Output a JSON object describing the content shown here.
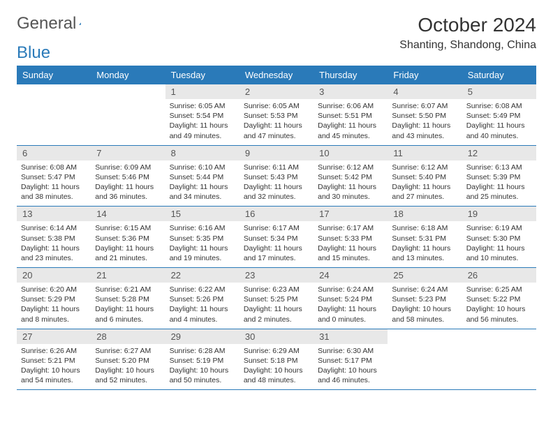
{
  "logo": {
    "text1": "General",
    "text2": "Blue"
  },
  "title": "October 2024",
  "location": "Shanting, Shandong, China",
  "colors": {
    "header_bg": "#2a7ab9",
    "header_text": "#ffffff",
    "daynum_bg": "#e8e8e8",
    "body_text": "#333333",
    "row_border": "#2a7ab9",
    "page_bg": "#ffffff"
  },
  "fonts": {
    "title_pt": 28,
    "location_pt": 16,
    "dow_pt": 13,
    "daynum_pt": 13,
    "body_pt": 10.5
  },
  "days_of_week": [
    "Sunday",
    "Monday",
    "Tuesday",
    "Wednesday",
    "Thursday",
    "Friday",
    "Saturday"
  ],
  "weeks": [
    [
      null,
      null,
      {
        "n": "1",
        "sr": "Sunrise: 6:05 AM",
        "ss": "Sunset: 5:54 PM",
        "dl": "Daylight: 11 hours and 49 minutes."
      },
      {
        "n": "2",
        "sr": "Sunrise: 6:05 AM",
        "ss": "Sunset: 5:53 PM",
        "dl": "Daylight: 11 hours and 47 minutes."
      },
      {
        "n": "3",
        "sr": "Sunrise: 6:06 AM",
        "ss": "Sunset: 5:51 PM",
        "dl": "Daylight: 11 hours and 45 minutes."
      },
      {
        "n": "4",
        "sr": "Sunrise: 6:07 AM",
        "ss": "Sunset: 5:50 PM",
        "dl": "Daylight: 11 hours and 43 minutes."
      },
      {
        "n": "5",
        "sr": "Sunrise: 6:08 AM",
        "ss": "Sunset: 5:49 PM",
        "dl": "Daylight: 11 hours and 40 minutes."
      }
    ],
    [
      {
        "n": "6",
        "sr": "Sunrise: 6:08 AM",
        "ss": "Sunset: 5:47 PM",
        "dl": "Daylight: 11 hours and 38 minutes."
      },
      {
        "n": "7",
        "sr": "Sunrise: 6:09 AM",
        "ss": "Sunset: 5:46 PM",
        "dl": "Daylight: 11 hours and 36 minutes."
      },
      {
        "n": "8",
        "sr": "Sunrise: 6:10 AM",
        "ss": "Sunset: 5:44 PM",
        "dl": "Daylight: 11 hours and 34 minutes."
      },
      {
        "n": "9",
        "sr": "Sunrise: 6:11 AM",
        "ss": "Sunset: 5:43 PM",
        "dl": "Daylight: 11 hours and 32 minutes."
      },
      {
        "n": "10",
        "sr": "Sunrise: 6:12 AM",
        "ss": "Sunset: 5:42 PM",
        "dl": "Daylight: 11 hours and 30 minutes."
      },
      {
        "n": "11",
        "sr": "Sunrise: 6:12 AM",
        "ss": "Sunset: 5:40 PM",
        "dl": "Daylight: 11 hours and 27 minutes."
      },
      {
        "n": "12",
        "sr": "Sunrise: 6:13 AM",
        "ss": "Sunset: 5:39 PM",
        "dl": "Daylight: 11 hours and 25 minutes."
      }
    ],
    [
      {
        "n": "13",
        "sr": "Sunrise: 6:14 AM",
        "ss": "Sunset: 5:38 PM",
        "dl": "Daylight: 11 hours and 23 minutes."
      },
      {
        "n": "14",
        "sr": "Sunrise: 6:15 AM",
        "ss": "Sunset: 5:36 PM",
        "dl": "Daylight: 11 hours and 21 minutes."
      },
      {
        "n": "15",
        "sr": "Sunrise: 6:16 AM",
        "ss": "Sunset: 5:35 PM",
        "dl": "Daylight: 11 hours and 19 minutes."
      },
      {
        "n": "16",
        "sr": "Sunrise: 6:17 AM",
        "ss": "Sunset: 5:34 PM",
        "dl": "Daylight: 11 hours and 17 minutes."
      },
      {
        "n": "17",
        "sr": "Sunrise: 6:17 AM",
        "ss": "Sunset: 5:33 PM",
        "dl": "Daylight: 11 hours and 15 minutes."
      },
      {
        "n": "18",
        "sr": "Sunrise: 6:18 AM",
        "ss": "Sunset: 5:31 PM",
        "dl": "Daylight: 11 hours and 13 minutes."
      },
      {
        "n": "19",
        "sr": "Sunrise: 6:19 AM",
        "ss": "Sunset: 5:30 PM",
        "dl": "Daylight: 11 hours and 10 minutes."
      }
    ],
    [
      {
        "n": "20",
        "sr": "Sunrise: 6:20 AM",
        "ss": "Sunset: 5:29 PM",
        "dl": "Daylight: 11 hours and 8 minutes."
      },
      {
        "n": "21",
        "sr": "Sunrise: 6:21 AM",
        "ss": "Sunset: 5:28 PM",
        "dl": "Daylight: 11 hours and 6 minutes."
      },
      {
        "n": "22",
        "sr": "Sunrise: 6:22 AM",
        "ss": "Sunset: 5:26 PM",
        "dl": "Daylight: 11 hours and 4 minutes."
      },
      {
        "n": "23",
        "sr": "Sunrise: 6:23 AM",
        "ss": "Sunset: 5:25 PM",
        "dl": "Daylight: 11 hours and 2 minutes."
      },
      {
        "n": "24",
        "sr": "Sunrise: 6:24 AM",
        "ss": "Sunset: 5:24 PM",
        "dl": "Daylight: 11 hours and 0 minutes."
      },
      {
        "n": "25",
        "sr": "Sunrise: 6:24 AM",
        "ss": "Sunset: 5:23 PM",
        "dl": "Daylight: 10 hours and 58 minutes."
      },
      {
        "n": "26",
        "sr": "Sunrise: 6:25 AM",
        "ss": "Sunset: 5:22 PM",
        "dl": "Daylight: 10 hours and 56 minutes."
      }
    ],
    [
      {
        "n": "27",
        "sr": "Sunrise: 6:26 AM",
        "ss": "Sunset: 5:21 PM",
        "dl": "Daylight: 10 hours and 54 minutes."
      },
      {
        "n": "28",
        "sr": "Sunrise: 6:27 AM",
        "ss": "Sunset: 5:20 PM",
        "dl": "Daylight: 10 hours and 52 minutes."
      },
      {
        "n": "29",
        "sr": "Sunrise: 6:28 AM",
        "ss": "Sunset: 5:19 PM",
        "dl": "Daylight: 10 hours and 50 minutes."
      },
      {
        "n": "30",
        "sr": "Sunrise: 6:29 AM",
        "ss": "Sunset: 5:18 PM",
        "dl": "Daylight: 10 hours and 48 minutes."
      },
      {
        "n": "31",
        "sr": "Sunrise: 6:30 AM",
        "ss": "Sunset: 5:17 PM",
        "dl": "Daylight: 10 hours and 46 minutes."
      },
      null,
      null
    ]
  ]
}
